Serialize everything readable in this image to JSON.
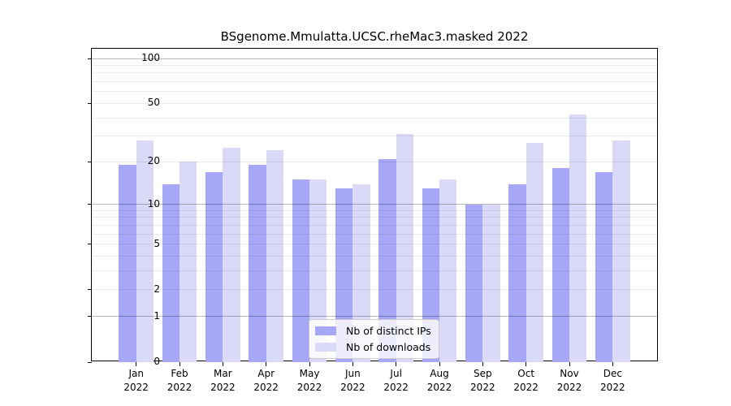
{
  "title": "BSgenome.Mmulatta.UCSC.rheMac3.masked 2022",
  "chart_data": {
    "type": "bar",
    "yscale": "log1p",
    "title": "BSgenome.Mmulatta.UCSC.rheMac3.masked 2022",
    "xlabel": "",
    "ylabel": "",
    "categories": [
      "Jan",
      "Feb",
      "Mar",
      "Apr",
      "May",
      "Jun",
      "Jul",
      "Aug",
      "Sep",
      "Oct",
      "Nov",
      "Dec"
    ],
    "category_sublabel": "2022",
    "series": [
      {
        "name": "Nb of distinct IPs",
        "color": "#a7a7f7",
        "values": [
          19,
          14,
          17,
          19,
          15,
          13,
          21,
          13,
          10,
          14,
          18,
          17
        ]
      },
      {
        "name": "Nb of downloads",
        "color": "#dadaf8",
        "values": [
          28,
          20,
          25,
          24,
          15,
          14,
          31,
          15,
          10,
          27,
          42,
          28
        ]
      }
    ],
    "yticks": [
      0,
      1,
      2,
      5,
      10,
      20,
      50,
      100
    ],
    "gridlines": {
      "major": [
        1,
        10,
        100
      ],
      "minor": [
        2,
        3,
        4,
        5,
        6,
        7,
        8,
        9,
        20,
        30,
        40,
        50,
        60,
        70,
        80,
        90
      ]
    },
    "ylim": [
      0,
      116
    ],
    "grid": true,
    "legend_position": "lower-center"
  },
  "colors": {
    "background": "#ffffff",
    "axis": "#000000",
    "bar_distinct_ips": "#a7a7f7",
    "bar_downloads": "#dadaf8",
    "legend_border": "#cccccc"
  }
}
